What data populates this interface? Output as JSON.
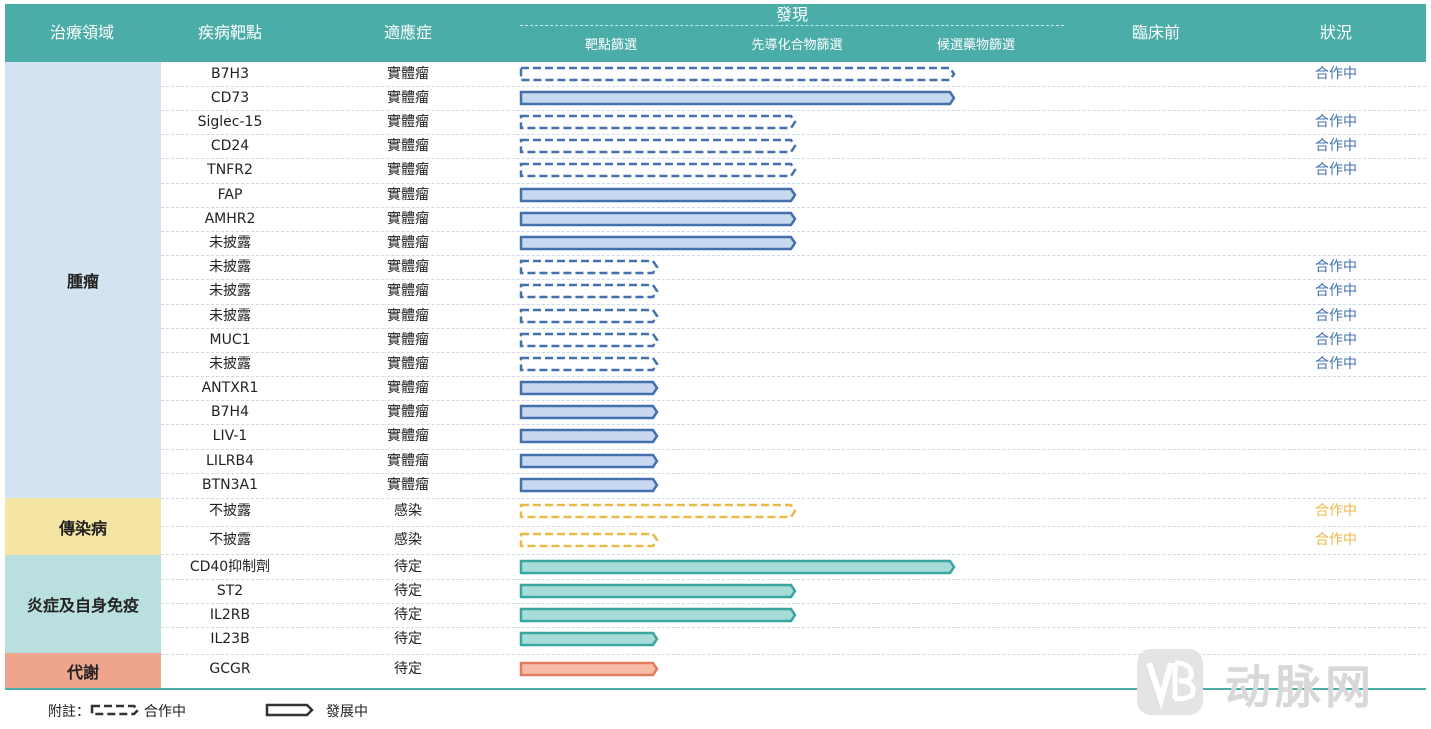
{
  "header": {
    "therapeutic_area": "治療領域",
    "target": "疾病靶點",
    "indication": "適應症",
    "discovery": "發現",
    "stage_target_screening": "靶點篩選",
    "stage_lead_screening": "先導化合物篩選",
    "stage_candidate_screening": "候選藥物篩選",
    "preclinical": "臨床前",
    "status": "狀況"
  },
  "colors": {
    "header_bg": "#4bada8",
    "oncology": {
      "bg": "#d3e3f1",
      "fill": "#c8d9ef",
      "stroke": "#4470ad"
    },
    "infectious": {
      "bg": "#f5e5a5",
      "fill": "#ffffff",
      "stroke": "#e9ba4a"
    },
    "immunology": {
      "bg": "#b9e0de",
      "fill": "#a8dcd8",
      "stroke": "#3aa6a0"
    },
    "metabolic": {
      "bg": "#eea48d",
      "fill": "#f6bea9",
      "stroke": "#e27d5f"
    }
  },
  "categories": [
    {
      "key": "oncology",
      "label": "腫瘤"
    },
    {
      "key": "infectious",
      "label": "傳染病"
    },
    {
      "key": "immunology",
      "label": "炎症及自身免疫"
    },
    {
      "key": "metabolic",
      "label": "代謝"
    }
  ],
  "chart_data": {
    "type": "bar",
    "stages": [
      "靶點篩選",
      "先導化合物篩選",
      "候選藥物篩選"
    ],
    "value_unit": "stage reached (1=靶點篩選, 2=先導化合物篩選, 3=候選藥物篩選)",
    "rows": [
      {
        "target": "B7H3",
        "indication": "實體瘤",
        "category": "oncology",
        "stage": 3,
        "style": "dashed",
        "status": "合作中"
      },
      {
        "target": "CD73",
        "indication": "實體瘤",
        "category": "oncology",
        "stage": 3,
        "style": "solid",
        "status": ""
      },
      {
        "target": "Siglec-15",
        "indication": "實體瘤",
        "category": "oncology",
        "stage": 2,
        "style": "dashed",
        "status": "合作中"
      },
      {
        "target": "CD24",
        "indication": "實體瘤",
        "category": "oncology",
        "stage": 2,
        "style": "dashed",
        "status": "合作中"
      },
      {
        "target": "TNFR2",
        "indication": "實體瘤",
        "category": "oncology",
        "stage": 2,
        "style": "dashed",
        "status": "合作中"
      },
      {
        "target": "FAP",
        "indication": "實體瘤",
        "category": "oncology",
        "stage": 2,
        "style": "solid",
        "status": ""
      },
      {
        "target": "AMHR2",
        "indication": "實體瘤",
        "category": "oncology",
        "stage": 2,
        "style": "solid",
        "status": ""
      },
      {
        "target": "未披露",
        "indication": "實體瘤",
        "category": "oncology",
        "stage": 2,
        "style": "solid",
        "status": ""
      },
      {
        "target": "未披露",
        "indication": "實體瘤",
        "category": "oncology",
        "stage": 1,
        "style": "dashed",
        "status": "合作中"
      },
      {
        "target": "未披露",
        "indication": "實體瘤",
        "category": "oncology",
        "stage": 1,
        "style": "dashed",
        "status": "合作中"
      },
      {
        "target": "未披露",
        "indication": "實體瘤",
        "category": "oncology",
        "stage": 1,
        "style": "dashed",
        "status": "合作中"
      },
      {
        "target": "MUC1",
        "indication": "實體瘤",
        "category": "oncology",
        "stage": 1,
        "style": "dashed",
        "status": "合作中"
      },
      {
        "target": "未披露",
        "indication": "實體瘤",
        "category": "oncology",
        "stage": 1,
        "style": "dashed",
        "status": "合作中"
      },
      {
        "target": "ANTXR1",
        "indication": "實體瘤",
        "category": "oncology",
        "stage": 1,
        "style": "solid",
        "status": ""
      },
      {
        "target": "B7H4",
        "indication": "實體瘤",
        "category": "oncology",
        "stage": 1,
        "style": "solid",
        "status": ""
      },
      {
        "target": "LIV-1",
        "indication": "實體瘤",
        "category": "oncology",
        "stage": 1,
        "style": "solid",
        "status": ""
      },
      {
        "target": "LILRB4",
        "indication": "實體瘤",
        "category": "oncology",
        "stage": 1,
        "style": "solid",
        "status": ""
      },
      {
        "target": "BTN3A1",
        "indication": "實體瘤",
        "category": "oncology",
        "stage": 1,
        "style": "solid",
        "status": ""
      },
      {
        "target": "不披露",
        "indication": "感染",
        "category": "infectious",
        "stage": 2,
        "style": "dashed",
        "status": "合作中"
      },
      {
        "target": "不披露",
        "indication": "感染",
        "category": "infectious",
        "stage": 1,
        "style": "dashed",
        "status": "合作中"
      },
      {
        "target": "CD40抑制劑",
        "indication": "待定",
        "category": "immunology",
        "stage": 3,
        "style": "solid",
        "status": ""
      },
      {
        "target": "ST2",
        "indication": "待定",
        "category": "immunology",
        "stage": 2,
        "style": "solid",
        "status": ""
      },
      {
        "target": "IL2RB",
        "indication": "待定",
        "category": "immunology",
        "stage": 2,
        "style": "solid",
        "status": ""
      },
      {
        "target": "IL23B",
        "indication": "待定",
        "category": "immunology",
        "stage": 1,
        "style": "solid",
        "status": ""
      },
      {
        "target": "GCGR",
        "indication": "待定",
        "category": "metabolic",
        "stage": 1,
        "style": "solid",
        "status": ""
      }
    ]
  },
  "footer": {
    "note_prefix": "附註：",
    "legend_partnered": "合作中",
    "legend_developing": "發展中"
  },
  "watermark": {
    "text": "动脉网",
    "logo": "vb-logo"
  }
}
